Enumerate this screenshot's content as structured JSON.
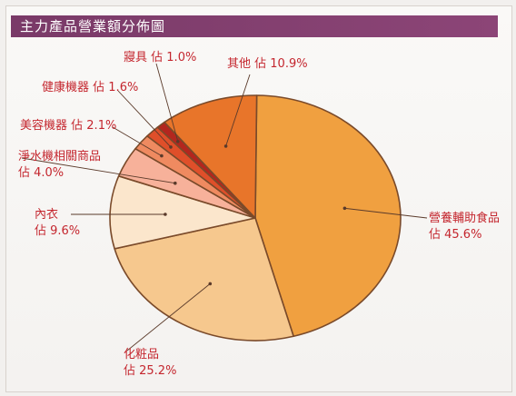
{
  "chart_data": {
    "type": "pie",
    "title": "主力產品營業額分佈圖",
    "slices": [
      {
        "name": "營養輔助食品",
        "value": 45.6,
        "value_label": "佔 45.6%",
        "color": "#f0a040"
      },
      {
        "name": "化粧品",
        "value": 25.2,
        "value_label": "佔 25.2%",
        "color": "#f6c88e"
      },
      {
        "name": "內衣",
        "value": 9.6,
        "value_label": "佔 9.6%",
        "color": "#fbe6cc"
      },
      {
        "name": "淨水機相關商品",
        "value": 4.0,
        "value_label": "佔 4.0%",
        "color": "#f7b19a"
      },
      {
        "name": "美容機器",
        "value": 2.1,
        "value_label": "佔 2.1%",
        "color": "#ef8a60"
      },
      {
        "name": "健康機器",
        "value": 1.6,
        "value_label": "佔 1.6%",
        "color": "#df4f2a"
      },
      {
        "name": "寢具",
        "value": 1.0,
        "value_label": "佔 1.0%",
        "color": "#b3261e"
      },
      {
        "name": "其他",
        "value": 10.9,
        "value_label": "佔 10.9%",
        "color": "#e8752a"
      }
    ]
  },
  "colors": {
    "title_bar": "#7a3a68",
    "label_text": "#c4262e"
  }
}
